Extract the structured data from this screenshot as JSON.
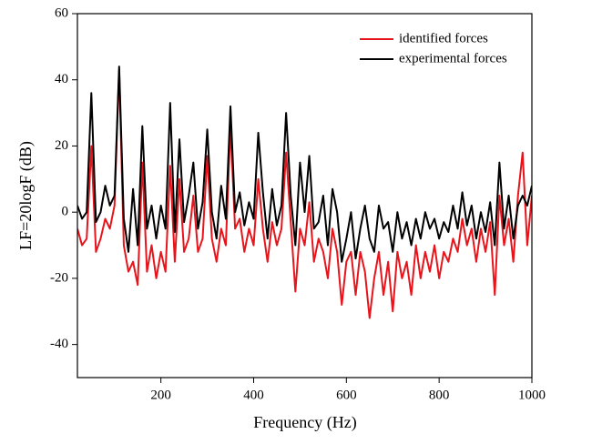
{
  "chart_data": {
    "type": "line",
    "xlabel": "Frequency (Hz)",
    "ylabel": "LF=20logF (dB)",
    "x": [
      20,
      30,
      40,
      50,
      60,
      70,
      80,
      90,
      100,
      110,
      120,
      130,
      140,
      150,
      160,
      170,
      180,
      190,
      200,
      210,
      220,
      230,
      240,
      250,
      260,
      270,
      280,
      290,
      300,
      310,
      320,
      330,
      340,
      350,
      360,
      370,
      380,
      390,
      400,
      410,
      420,
      430,
      440,
      450,
      460,
      470,
      480,
      490,
      500,
      510,
      520,
      530,
      540,
      550,
      560,
      570,
      580,
      590,
      600,
      610,
      620,
      630,
      640,
      650,
      660,
      670,
      680,
      690,
      700,
      710,
      720,
      730,
      740,
      750,
      760,
      770,
      780,
      790,
      800,
      810,
      820,
      830,
      840,
      850,
      860,
      870,
      880,
      890,
      900,
      910,
      920,
      930,
      940,
      950,
      960,
      970,
      980,
      990,
      1000
    ],
    "series": [
      {
        "name": "identified forces",
        "color": "#e8141b",
        "values": [
          -5,
          -10,
          -8,
          20,
          -12,
          -8,
          -2,
          -5,
          2,
          43,
          -10,
          -18,
          -15,
          -22,
          15,
          -18,
          -10,
          -20,
          -12,
          -18,
          14,
          -15,
          10,
          -12,
          -8,
          5,
          -12,
          -8,
          17,
          -8,
          -15,
          -5,
          -10,
          26,
          -5,
          -2,
          -12,
          -5,
          -10,
          10,
          -5,
          -15,
          -3,
          -10,
          -5,
          18,
          -3,
          -24,
          -5,
          -10,
          3,
          -15,
          -8,
          -12,
          -20,
          -5,
          -12,
          -28,
          -15,
          -12,
          -25,
          -12,
          -18,
          -32,
          -20,
          -12,
          -25,
          -15,
          -30,
          -12,
          -20,
          -15,
          -25,
          -10,
          -20,
          -12,
          -18,
          -10,
          -20,
          -12,
          -15,
          -8,
          -12,
          -2,
          -10,
          -5,
          -15,
          -5,
          -12,
          -3,
          -25,
          5,
          -10,
          -2,
          -15,
          5,
          18,
          -10,
          5
        ]
      },
      {
        "name": "experimental forces",
        "color": "#000000",
        "values": [
          2,
          -2,
          0,
          36,
          -3,
          0,
          8,
          2,
          5,
          44,
          -2,
          -12,
          7,
          -10,
          26,
          -5,
          2,
          -8,
          2,
          -5,
          33,
          -6,
          22,
          -3,
          5,
          15,
          -5,
          3,
          25,
          0,
          -8,
          8,
          -2,
          32,
          0,
          6,
          -4,
          3,
          -2,
          24,
          6,
          -8,
          7,
          -4,
          2,
          30,
          5,
          -10,
          15,
          0,
          17,
          -5,
          -3,
          5,
          -10,
          7,
          0,
          -15,
          -8,
          0,
          -14,
          -5,
          2,
          -8,
          -12,
          2,
          -5,
          -3,
          -12,
          0,
          -8,
          -3,
          -10,
          -2,
          -8,
          0,
          -5,
          -2,
          -8,
          -3,
          -6,
          2,
          -5,
          6,
          -4,
          2,
          -8,
          0,
          -6,
          3,
          -10,
          15,
          -5,
          5,
          -8,
          2,
          5,
          2,
          8
        ]
      }
    ],
    "xlim": [
      20,
      1000
    ],
    "xticks": [
      200,
      400,
      600,
      800,
      1000
    ],
    "ylim": [
      -50,
      60
    ],
    "yticks": [
      -40,
      -20,
      0,
      20,
      40,
      60
    ],
    "legend": "upper right"
  }
}
